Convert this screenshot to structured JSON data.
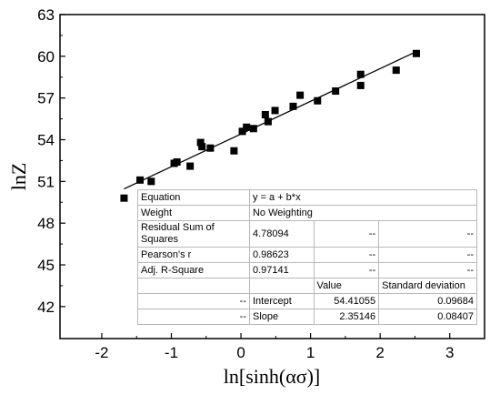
{
  "chart_data": {
    "type": "scatter",
    "title": "",
    "xlabel": "ln[sinh(ασ)]",
    "ylabel": "lnZ",
    "xlim": [
      -2.6,
      3.5
    ],
    "ylim": [
      39.7,
      63
    ],
    "xticks": [
      -2,
      -1,
      0,
      1,
      2,
      3
    ],
    "yticks": [
      42,
      45,
      48,
      51,
      54,
      57,
      60,
      63
    ],
    "grid": false,
    "legend": "none",
    "marker": "square",
    "color": "#000000",
    "points": [
      {
        "x": -1.68,
        "y": 49.8
      },
      {
        "x": -1.45,
        "y": 51.1
      },
      {
        "x": -1.29,
        "y": 51.0
      },
      {
        "x": -0.96,
        "y": 52.3
      },
      {
        "x": -0.92,
        "y": 52.4
      },
      {
        "x": -0.73,
        "y": 52.1
      },
      {
        "x": -0.58,
        "y": 53.8
      },
      {
        "x": -0.56,
        "y": 53.5
      },
      {
        "x": -0.44,
        "y": 53.4
      },
      {
        "x": -0.1,
        "y": 53.2
      },
      {
        "x": 0.02,
        "y": 54.6
      },
      {
        "x": 0.08,
        "y": 54.9
      },
      {
        "x": 0.18,
        "y": 54.8
      },
      {
        "x": 0.35,
        "y": 55.8
      },
      {
        "x": 0.39,
        "y": 55.3
      },
      {
        "x": 0.49,
        "y": 56.1
      },
      {
        "x": 0.75,
        "y": 56.4
      },
      {
        "x": 0.85,
        "y": 57.2
      },
      {
        "x": 1.1,
        "y": 56.8
      },
      {
        "x": 1.36,
        "y": 57.5
      },
      {
        "x": 1.72,
        "y": 57.9
      },
      {
        "x": 1.72,
        "y": 58.7
      },
      {
        "x": 2.23,
        "y": 59.0
      },
      {
        "x": 2.52,
        "y": 60.2
      }
    ],
    "fit": {
      "intercept": 54.41055,
      "slope": 2.35146,
      "x_range": [
        -1.68,
        2.52
      ]
    },
    "fit_table": {
      "rows": [
        [
          "Equation",
          "y = a + b*x",
          "",
          ""
        ],
        [
          "Weight",
          "No Weighting",
          "",
          ""
        ],
        [
          "Residual Sum of Squares",
          "4.78094",
          "--",
          "--"
        ],
        [
          "Pearson's r",
          "0.98623",
          "--",
          "--"
        ],
        [
          "Adj. R-Square",
          "0.97141",
          "--",
          "--"
        ],
        [
          "",
          "",
          "Value",
          "Standard deviation"
        ],
        [
          "--",
          "Intercept",
          "54.41055",
          "0.09684"
        ],
        [
          "--",
          "Slope",
          "2.35146",
          "0.08407"
        ]
      ]
    }
  }
}
